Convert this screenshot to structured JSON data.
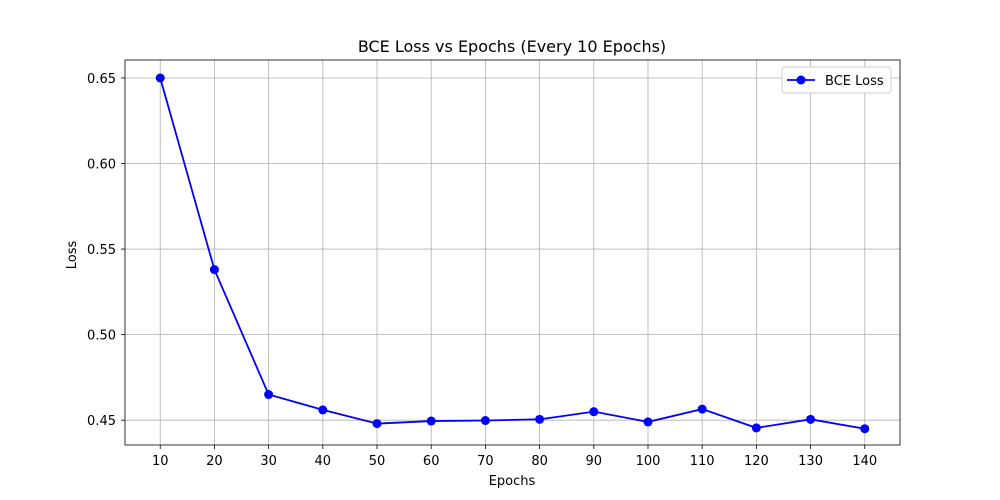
{
  "chart_data": {
    "type": "line",
    "title": "BCE Loss vs Epochs (Every 10 Epochs)",
    "xlabel": "Epochs",
    "ylabel": "Loss",
    "x": [
      10,
      20,
      30,
      40,
      50,
      60,
      70,
      80,
      90,
      100,
      110,
      120,
      130,
      140
    ],
    "x_ticks": [
      "10",
      "20",
      "30",
      "40",
      "50",
      "60",
      "70",
      "80",
      "90",
      "100",
      "110",
      "120",
      "130",
      "140"
    ],
    "y_ticks": [
      "0.45",
      "0.50",
      "0.55",
      "0.60",
      "0.65"
    ],
    "xlim": [
      3.5,
      146.5
    ],
    "ylim": [
      0.4355,
      0.6605
    ],
    "grid": true,
    "legend_position": "top-right",
    "series": [
      {
        "name": "BCE Loss",
        "color": "#0000ff",
        "marker": "circle",
        "values": [
          0.65,
          0.538,
          0.465,
          0.456,
          0.448,
          0.4495,
          0.4498,
          0.4505,
          0.455,
          0.449,
          0.4565,
          0.4455,
          0.4505,
          0.445
        ]
      }
    ]
  }
}
